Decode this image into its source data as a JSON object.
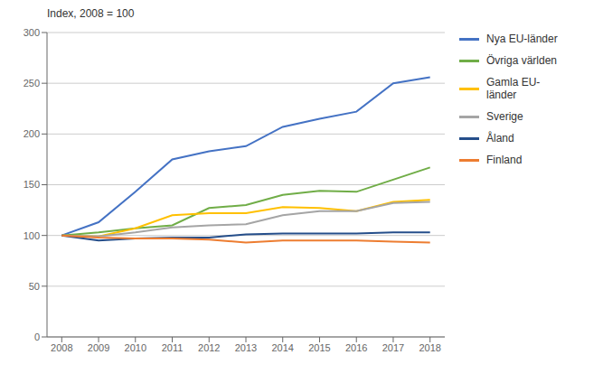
{
  "chart_data": {
    "type": "line",
    "y_label": "Index, 2008 = 100",
    "x": [
      2008,
      2009,
      2010,
      2011,
      2012,
      2013,
      2014,
      2015,
      2016,
      2017,
      2018
    ],
    "series": [
      {
        "name": "Nya EU-länder",
        "color": "#4472C4",
        "values": [
          100,
          113,
          143,
          175,
          183,
          188,
          207,
          215,
          222,
          250,
          256
        ]
      },
      {
        "name": "Övriga världen",
        "color": "#70AD47",
        "values": [
          100,
          103,
          107,
          110,
          127,
          130,
          140,
          144,
          143,
          155,
          167
        ]
      },
      {
        "name": "Gamla EU-\nländer",
        "color": "#FFC000",
        "values": [
          100,
          99,
          107,
          120,
          122,
          122,
          128,
          127,
          124,
          133,
          135
        ]
      },
      {
        "name": "Sverige",
        "color": "#A5A5A5",
        "values": [
          100,
          99,
          103,
          108,
          110,
          111,
          120,
          124,
          124,
          132,
          133
        ]
      },
      {
        "name": "Åland",
        "color": "#254E8A",
        "values": [
          100,
          95,
          97,
          98,
          98,
          101,
          102,
          102,
          102,
          103,
          103
        ]
      },
      {
        "name": "Finland",
        "color": "#ED7D31",
        "values": [
          100,
          98,
          97,
          97,
          96,
          93,
          95,
          95,
          95,
          94,
          93
        ]
      }
    ],
    "xlim": [
      2007.6,
      2018.4
    ],
    "xticks": [
      2008,
      2009,
      2010,
      2011,
      2012,
      2013,
      2014,
      2015,
      2016,
      2017,
      2018
    ],
    "ylim": [
      0,
      300
    ],
    "yticks": [
      0,
      50,
      100,
      150,
      200,
      250,
      300
    ],
    "grid": true,
    "legend": "right"
  }
}
